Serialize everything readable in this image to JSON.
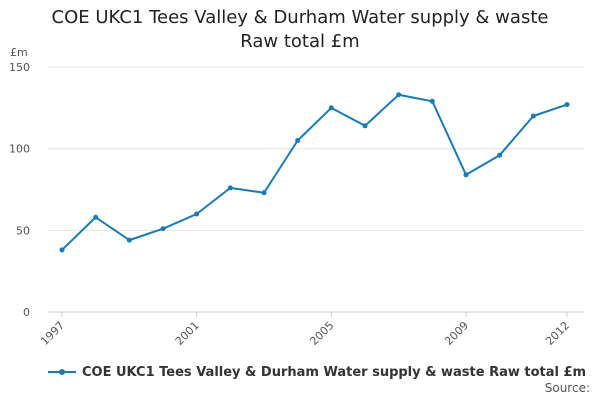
{
  "chart_data": {
    "type": "line",
    "title": "COE UKC1 Tees Valley & Durham Water supply & waste Raw total £m",
    "title_lines": [
      "COE UKC1 Tees Valley & Durham Water supply & waste",
      "Raw total £m"
    ],
    "ylabel": "£m",
    "xlabel": "",
    "x": [
      1997,
      1998,
      1999,
      2000,
      2001,
      2002,
      2003,
      2004,
      2005,
      2006,
      2007,
      2008,
      2009,
      2010,
      2011,
      2012
    ],
    "x_tick_labels": [
      "1997",
      "2001",
      "2005",
      "2009",
      "2012"
    ],
    "y_ticks": [
      0,
      50,
      100,
      150
    ],
    "ylim": [
      0,
      150
    ],
    "grid": true,
    "legend_position": "bottom-left",
    "series": [
      {
        "name": "COE UKC1 Tees Valley & Durham Water supply & waste Raw total £m",
        "color": "#1a7ab8",
        "values": [
          38,
          58,
          44,
          51,
          60,
          76,
          73,
          105,
          125,
          114,
          133,
          129,
          84,
          96,
          120,
          127
        ]
      }
    ],
    "source_label": "Source:"
  }
}
